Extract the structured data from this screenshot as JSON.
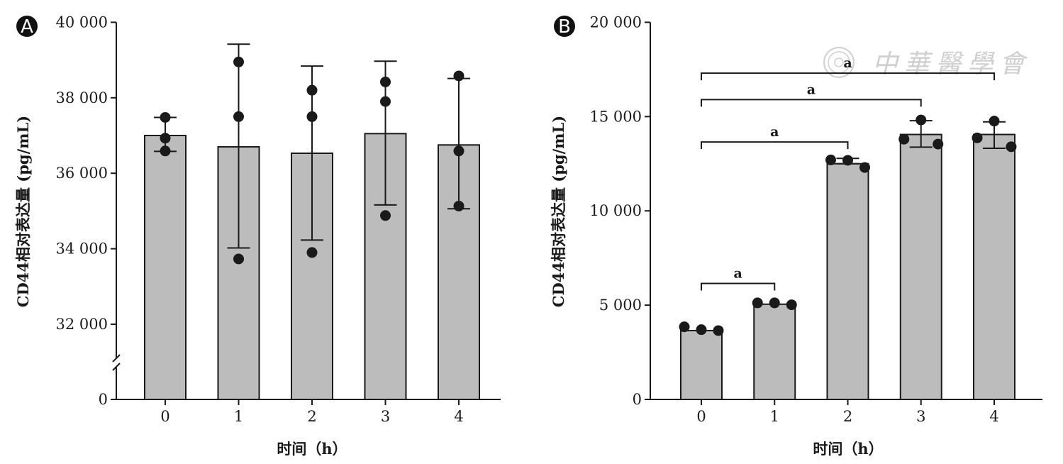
{
  "colors": {
    "bar": "#bcbcbc",
    "stroke": "#1a1a1a",
    "point": "#1a1a1a",
    "watermark": "#cfcfcf"
  },
  "watermark": {
    "text": "中華醫學會"
  },
  "chart_data": [
    {
      "panel": "A",
      "type": "bar",
      "title": "",
      "xlabel": "时间（h）",
      "ylabel": "CD44相对表达量 (pg/mL)",
      "axis_break": true,
      "categories": [
        "0",
        "1",
        "2",
        "3",
        "4"
      ],
      "values": [
        37000,
        36700,
        36530,
        37050,
        36750
      ],
      "error": [
        [
          36580,
          37480
        ],
        [
          34020,
          39420
        ],
        [
          34230,
          38840
        ],
        [
          35160,
          38970
        ],
        [
          35060,
          38510
        ]
      ],
      "points": [
        [
          37480,
          36930,
          36590
        ],
        [
          38950,
          37500,
          33730
        ],
        [
          38200,
          37500,
          33900
        ],
        [
          38420,
          37900,
          34880
        ],
        [
          38580,
          36590,
          35130
        ]
      ],
      "yticks": [
        {
          "value": 32000,
          "label": "32 000"
        },
        {
          "value": 34000,
          "label": "34 000"
        },
        {
          "value": 36000,
          "label": "36 000"
        },
        {
          "value": 38000,
          "label": "38 000"
        },
        {
          "value": 40000,
          "label": "40 000"
        }
      ],
      "zero_label": "0",
      "ylim": [
        31000,
        40000
      ],
      "significance": []
    },
    {
      "panel": "B",
      "type": "bar",
      "title": "",
      "xlabel": "时间（h）",
      "ylabel": "CD44相对表达量 (pg/mL)",
      "axis_break": false,
      "categories": [
        "0",
        "1",
        "2",
        "3",
        "4"
      ],
      "values": [
        3650,
        5050,
        12500,
        14050,
        14050
      ],
      "error": [
        [
          3650,
          3650
        ],
        [
          5050,
          5050
        ],
        [
          12500,
          12780
        ],
        [
          13380,
          14780
        ],
        [
          13320,
          14720
        ]
      ],
      "points": [
        [
          3850,
          3700,
          3650
        ],
        [
          5120,
          5120,
          5020
        ],
        [
          12700,
          12680,
          12300
        ],
        [
          13800,
          14820,
          13540
        ],
        [
          13870,
          14760,
          13400
        ]
      ],
      "yticks": [
        {
          "value": 0,
          "label": "0"
        },
        {
          "value": 5000,
          "label": "5 000"
        },
        {
          "value": 10000,
          "label": "10 000"
        },
        {
          "value": 15000,
          "label": "15 000"
        },
        {
          "value": 20000,
          "label": "20 000"
        }
      ],
      "zero_label": "",
      "ylim": [
        0,
        20000
      ],
      "significance": [
        {
          "from": 0,
          "to": 1,
          "y": 6150,
          "label": "a"
        },
        {
          "from": 0,
          "to": 2,
          "y": 13650,
          "label": "a"
        },
        {
          "from": 0,
          "to": 3,
          "y": 15900,
          "label": "a"
        },
        {
          "from": 0,
          "to": 4,
          "y": 17300,
          "label": "a"
        }
      ]
    }
  ]
}
